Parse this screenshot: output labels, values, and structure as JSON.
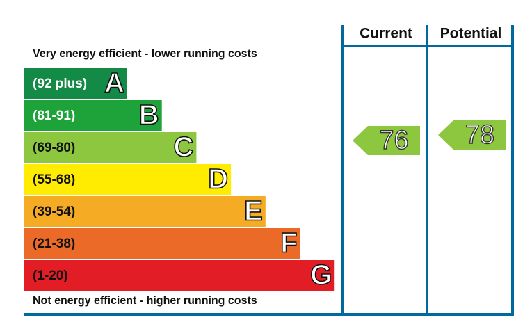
{
  "chart_data": {
    "type": "epc",
    "top_label": "Very energy efficient - lower running costs",
    "bottom_label": "Not energy efficient - higher running costs",
    "bands": [
      {
        "range": "(92 plus)",
        "letter": "A",
        "color": "#138a45",
        "text_color": "#ffffff"
      },
      {
        "range": "(81-91)",
        "letter": "B",
        "color": "#1ea33a",
        "text_color": "#ffffff"
      },
      {
        "range": "(69-80)",
        "letter": "C",
        "color": "#8dc63f",
        "text_color": "#111111"
      },
      {
        "range": "(55-68)",
        "letter": "D",
        "color": "#ffec00",
        "text_color": "#111111"
      },
      {
        "range": "(39-54)",
        "letter": "E",
        "color": "#f5ab23",
        "text_color": "#111111"
      },
      {
        "range": "(21-38)",
        "letter": "F",
        "color": "#eb6a27",
        "text_color": "#111111"
      },
      {
        "range": "(1-20)",
        "letter": "G",
        "color": "#e31d25",
        "text_color": "#111111"
      }
    ],
    "columns": [
      "Current",
      "Potential"
    ],
    "current": 76,
    "potential": 78,
    "border_color": "#006a9e"
  }
}
